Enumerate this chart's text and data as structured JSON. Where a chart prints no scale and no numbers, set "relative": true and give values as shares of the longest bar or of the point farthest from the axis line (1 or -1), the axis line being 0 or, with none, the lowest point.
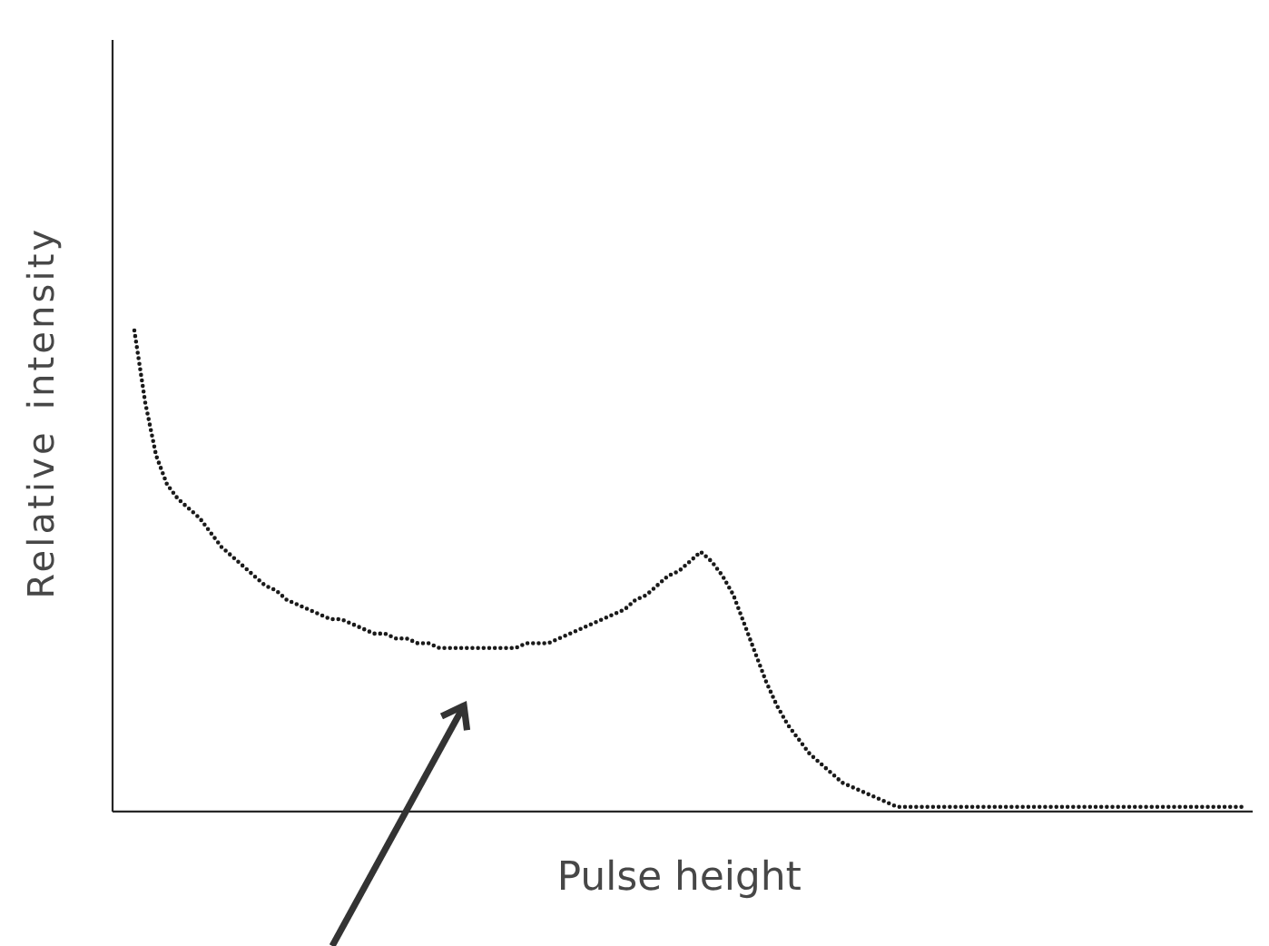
{
  "chart_data": {
    "type": "line",
    "xlabel": "Pulse height",
    "ylabel": "Relative intensity",
    "relative": true,
    "line_style": "dotted",
    "color": "#1a1a1a",
    "categories": [
      null,
      null,
      null,
      null,
      null,
      null,
      null,
      null,
      null,
      null,
      null,
      null,
      null,
      null,
      null,
      null,
      null,
      null,
      null,
      null,
      null,
      null,
      null,
      null,
      null,
      null,
      null,
      null,
      null,
      null,
      null,
      null,
      null,
      null,
      null,
      null,
      null,
      null,
      null,
      null,
      null,
      null,
      null,
      null,
      null,
      null,
      null,
      null,
      null,
      null,
      null,
      null,
      null,
      null,
      null,
      null,
      null,
      null,
      null,
      null,
      null,
      null,
      null,
      null,
      null,
      null,
      null,
      null,
      null,
      null,
      null,
      null,
      null,
      null,
      null,
      null,
      null,
      null,
      null,
      null,
      null,
      null,
      null,
      null,
      null,
      null,
      null,
      null,
      null,
      null,
      null,
      null,
      null,
      null,
      null,
      null,
      null,
      null,
      null,
      null,
      null,
      null,
      null
    ],
    "values": [
      1.0,
      0.85,
      0.74,
      0.68,
      0.65,
      0.63,
      0.61,
      0.58,
      0.55,
      0.53,
      0.51,
      0.49,
      0.47,
      0.46,
      0.44,
      0.43,
      0.42,
      0.41,
      0.4,
      0.4,
      0.39,
      0.38,
      0.37,
      0.37,
      0.36,
      0.36,
      0.35,
      0.35,
      0.34,
      0.34,
      0.34,
      0.34,
      0.34,
      0.34,
      0.34,
      0.34,
      0.35,
      0.35,
      0.35,
      0.36,
      0.37,
      0.38,
      0.39,
      0.4,
      0.41,
      0.42,
      0.44,
      0.45,
      0.47,
      0.49,
      0.5,
      0.52,
      0.54,
      0.52,
      0.49,
      0.45,
      0.39,
      0.33,
      0.27,
      0.22,
      0.18,
      0.15,
      0.12,
      0.1,
      0.08,
      0.06,
      0.05,
      0.04,
      0.03,
      0.02,
      0.01,
      0.01,
      0.01,
      0.01,
      0.01,
      0.01,
      0.01,
      0.01,
      0.01,
      0.01,
      0.01,
      0.01,
      0.01,
      0.01,
      0.01,
      0.01,
      0.01,
      0.01,
      0.01,
      0.01,
      0.01,
      0.01,
      0.01,
      0.01,
      0.01,
      0.01,
      0.01,
      0.01,
      0.01,
      0.01,
      0.01,
      0.01,
      0.01
    ]
  }
}
